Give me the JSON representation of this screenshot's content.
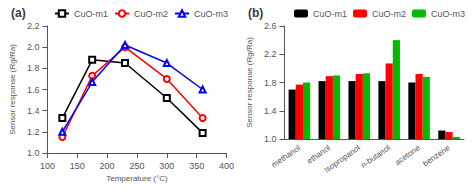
{
  "chart_data": [
    {
      "type": "line",
      "title": "(a)",
      "xlabel": "Temperature (°C)",
      "ylabel": "Sensor response (Rg/Ra)",
      "x": [
        125,
        175,
        230,
        300,
        360
      ],
      "series": [
        {
          "name": "CuO-m1",
          "color": "black",
          "marker": "square",
          "values": [
            1.33,
            1.88,
            1.85,
            1.52,
            1.19
          ]
        },
        {
          "name": "CuO-m2",
          "color": "red",
          "marker": "circle",
          "values": [
            1.15,
            1.73,
            2.0,
            1.7,
            1.33
          ]
        },
        {
          "name": "CuO-m3",
          "color": "blue",
          "marker": "triangle",
          "values": [
            1.2,
            1.67,
            2.02,
            1.85,
            1.6
          ]
        }
      ],
      "xlim": [
        100,
        400
      ],
      "xticks": [
        100,
        150,
        200,
        250,
        300,
        350,
        400
      ],
      "ylim": [
        1.0,
        2.2
      ],
      "yticks": [
        {
          "value": 1.0,
          "label": "1.0"
        },
        {
          "value": 1.2,
          "label": "1.2"
        },
        {
          "value": 1.4,
          "label": "1.4"
        },
        {
          "value": 1.6,
          "label": "1.6"
        },
        {
          "value": 1.8,
          "label": "1.8"
        },
        {
          "value": 2.0,
          "label": "2.0"
        },
        {
          "value": 2.2,
          "label": "2.2"
        }
      ],
      "legend": "upper right",
      "grid": false
    },
    {
      "type": "bar",
      "title": "(b)",
      "ylabel": "Sensor response (Rg/Ra)",
      "categories": [
        "methanol",
        "ethanol",
        "Isopropanol",
        "n-butanol",
        "acetone",
        "benzene"
      ],
      "series": [
        {
          "name": "CuO-m1",
          "color": "black",
          "values": [
            1.7,
            1.82,
            1.82,
            1.82,
            1.8,
            1.12
          ]
        },
        {
          "name": "CuO-m2",
          "color": "red",
          "values": [
            1.77,
            1.89,
            1.92,
            2.07,
            1.92,
            1.1
          ]
        },
        {
          "name": "CuO-m3",
          "color": "#00bb00",
          "values": [
            1.8,
            1.9,
            1.93,
            2.4,
            1.88,
            1.03
          ]
        }
      ],
      "ylim": [
        1.0,
        2.6
      ],
      "yticks": [
        {
          "value": 1.0,
          "label": "1.0"
        },
        {
          "value": 1.4,
          "label": "1.4"
        },
        {
          "value": 1.8,
          "label": "1.8"
        },
        {
          "value": 2.2,
          "label": "2.2"
        },
        {
          "value": 2.6,
          "label": "2.6"
        }
      ],
      "legend": "upper right",
      "grid": false
    }
  ]
}
